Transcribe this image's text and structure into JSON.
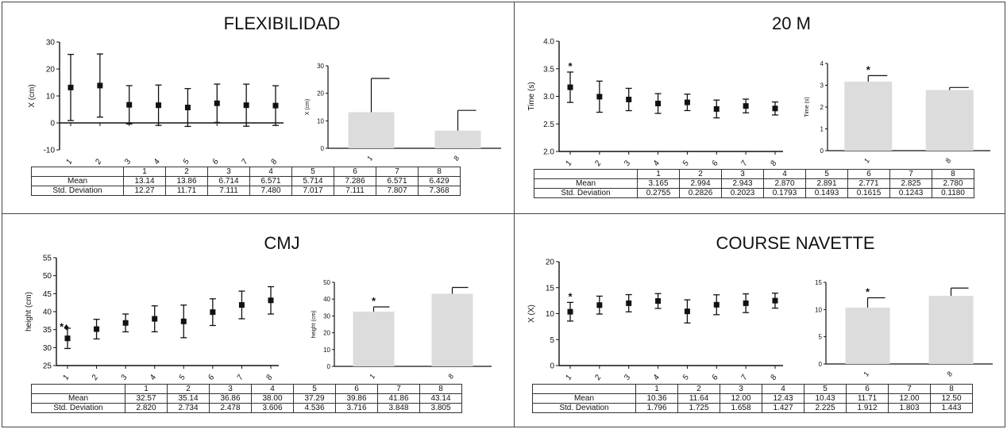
{
  "chart_data": [
    {
      "id": "flex",
      "type": "scatter",
      "title": "FLEXIBILIDAD",
      "ylabel": "X (cm)",
      "categories": [
        "1",
        "2",
        "3",
        "4",
        "5",
        "6",
        "7",
        "8"
      ],
      "ylim": [
        -10,
        30
      ],
      "yticks": [
        -10,
        0,
        10,
        20,
        30
      ],
      "means": [
        13.14,
        13.86,
        6.714,
        6.571,
        5.714,
        7.286,
        6.571,
        6.429
      ],
      "sd": [
        12.27,
        11.71,
        7.111,
        7.48,
        7.017,
        7.111,
        7.807,
        7.368
      ],
      "marks": [],
      "inset": {
        "type": "bar",
        "categories": [
          "1",
          "8"
        ],
        "values": [
          13.14,
          6.429
        ],
        "sd": [
          12.27,
          7.368
        ],
        "ylabel": "X (cm)",
        "ylim": [
          0,
          30
        ],
        "yticks": [
          0,
          10,
          20,
          30
        ],
        "marks": []
      },
      "table": {
        "header": [
          "1",
          "2",
          "3",
          "4",
          "5",
          "6",
          "7",
          "8"
        ],
        "rows": [
          {
            "label": "Mean",
            "values": [
              "13.14",
              "13.86",
              "6.714",
              "6.571",
              "5.714",
              "7.286",
              "6.571",
              "6.429"
            ]
          },
          {
            "label": "Std. Deviation",
            "values": [
              "12.27",
              "11.71",
              "7.111",
              "7.480",
              "7.017",
              "7.111",
              "7.807",
              "7.368"
            ]
          }
        ]
      }
    },
    {
      "id": "m20",
      "type": "scatter",
      "title": "20 M",
      "ylabel": "Time (s)",
      "categories": [
        "1",
        "2",
        "3",
        "4",
        "5",
        "6",
        "7",
        "8"
      ],
      "ylim": [
        2.0,
        4.0
      ],
      "yticks": [
        "2.0",
        "2.5",
        "3.0",
        "3.5",
        "4.0"
      ],
      "means": [
        3.165,
        2.994,
        2.943,
        2.87,
        2.891,
        2.771,
        2.825,
        2.78
      ],
      "sd": [
        0.2755,
        0.2826,
        0.2023,
        0.1793,
        0.1493,
        0.1615,
        0.1243,
        0.118
      ],
      "marks": [
        {
          "index": 0,
          "text": "*"
        }
      ],
      "inset": {
        "type": "bar",
        "categories": [
          "1",
          "8"
        ],
        "values": [
          3.165,
          2.78
        ],
        "sd": [
          0.2755,
          0.118
        ],
        "ylabel": "Time (s)",
        "ylim": [
          0,
          4
        ],
        "yticks": [
          0,
          1,
          2,
          3,
          4
        ],
        "marks": [
          {
            "index": 0,
            "text": "*"
          }
        ]
      },
      "table": {
        "header": [
          "1",
          "2",
          "3",
          "4",
          "5",
          "6",
          "7",
          "8"
        ],
        "rows": [
          {
            "label": "Mean",
            "values": [
              "3.165",
              "2.994",
              "2.943",
              "2.870",
              "2.891",
              "2.771",
              "2.825",
              "2.780"
            ]
          },
          {
            "label": "Std. Deviation",
            "values": [
              "0.2755",
              "0.2826",
              "0.2023",
              "0.1793",
              "0.1493",
              "0.1615",
              "0.1243",
              "0.1180"
            ]
          }
        ]
      }
    },
    {
      "id": "cmj",
      "type": "scatter",
      "title": "CMJ",
      "ylabel": "height (cm)",
      "categories": [
        "1",
        "2",
        "3",
        "4",
        "5",
        "6",
        "7",
        "8"
      ],
      "ylim": [
        25,
        55
      ],
      "yticks": [
        25,
        30,
        35,
        40,
        45,
        50,
        55
      ],
      "means": [
        32.57,
        35.14,
        36.86,
        38.0,
        37.29,
        39.86,
        41.86,
        43.14
      ],
      "sd": [
        2.82,
        2.734,
        2.478,
        3.606,
        4.536,
        3.716,
        3.848,
        3.805
      ],
      "marks": [
        {
          "index": 0,
          "text": "*♦"
        }
      ],
      "inset": {
        "type": "bar",
        "categories": [
          "1",
          "8"
        ],
        "values": [
          32.57,
          43.14
        ],
        "sd": [
          2.82,
          3.805
        ],
        "ylabel": "height (cm)",
        "ylim": [
          0,
          50
        ],
        "yticks": [
          0,
          10,
          20,
          30,
          40,
          50
        ],
        "marks": [
          {
            "index": 0,
            "text": "*"
          }
        ]
      },
      "table": {
        "header": [
          "1",
          "2",
          "3",
          "4",
          "5",
          "6",
          "7",
          "8"
        ],
        "rows": [
          {
            "label": "Mean",
            "values": [
              "32.57",
              "35.14",
              "36.86",
              "38.00",
              "37.29",
              "39.86",
              "41.86",
              "43.14"
            ]
          },
          {
            "label": "Std. Deviation",
            "values": [
              "2.820",
              "2.734",
              "2.478",
              "3.606",
              "4.536",
              "3.716",
              "3.848",
              "3.805"
            ]
          }
        ]
      }
    },
    {
      "id": "cn",
      "type": "scatter",
      "title": "COURSE NAVETTE",
      "ylabel": "X (X)",
      "categories": [
        "1",
        "2",
        "3",
        "4",
        "5",
        "6",
        "7",
        "8"
      ],
      "ylim": [
        0,
        20
      ],
      "yticks": [
        0,
        5,
        10,
        15,
        20
      ],
      "means": [
        10.36,
        11.64,
        12.0,
        12.43,
        10.43,
        11.71,
        12.0,
        12.5
      ],
      "sd": [
        1.796,
        1.725,
        1.658,
        1.427,
        2.225,
        1.912,
        1.803,
        1.443
      ],
      "marks": [
        {
          "index": 0,
          "text": "*"
        }
      ],
      "inset": {
        "type": "bar",
        "categories": [
          "1",
          "8"
        ],
        "values": [
          10.36,
          12.5
        ],
        "sd": [
          1.796,
          1.443
        ],
        "ylabel": "",
        "ylim": [
          0,
          15
        ],
        "yticks": [
          0,
          5,
          10,
          15
        ],
        "marks": [
          {
            "index": 0,
            "text": "*"
          }
        ]
      },
      "table": {
        "header": [
          "1",
          "2",
          "3",
          "4",
          "5",
          "6",
          "7",
          "8"
        ],
        "rows": [
          {
            "label": "Mean",
            "values": [
              "10.36",
              "11.64",
              "12.00",
              "12.43",
              "10.43",
              "11.71",
              "12.00",
              "12.50"
            ]
          },
          {
            "label": "Std. Deviation",
            "values": [
              "1.796",
              "1.725",
              "1.658",
              "1.427",
              "2.225",
              "1.912",
              "1.803",
              "1.443"
            ]
          }
        ]
      }
    }
  ]
}
